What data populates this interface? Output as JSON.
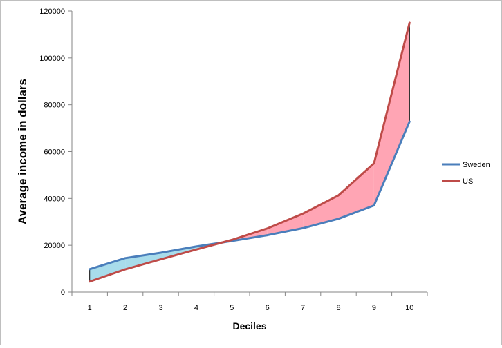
{
  "chart_data": {
    "type": "line",
    "title": "",
    "xlabel": "Deciles",
    "ylabel": "Average income in dollars",
    "categories": [
      "1",
      "2",
      "3",
      "4",
      "5",
      "6",
      "7",
      "8",
      "9",
      "10"
    ],
    "ylim": [
      0,
      120000
    ],
    "yticks": [
      "0",
      "20000",
      "40000",
      "60000",
      "80000",
      "100000",
      "120000"
    ],
    "grid": false,
    "legend_position": "right",
    "series": [
      {
        "name": "Sweden",
        "color": "#4a7ebb",
        "values": [
          9800,
          14500,
          16800,
          19500,
          21800,
          24300,
          27300,
          31300,
          37000,
          72800
        ]
      },
      {
        "name": "US",
        "color": "#be4b48",
        "values": [
          4500,
          9700,
          14000,
          18200,
          22300,
          27200,
          33500,
          41300,
          55000,
          115000
        ]
      }
    ],
    "fill_colors": {
      "sweden_higher": "#a8dceb",
      "us_higher": "#ffa5b4"
    }
  }
}
